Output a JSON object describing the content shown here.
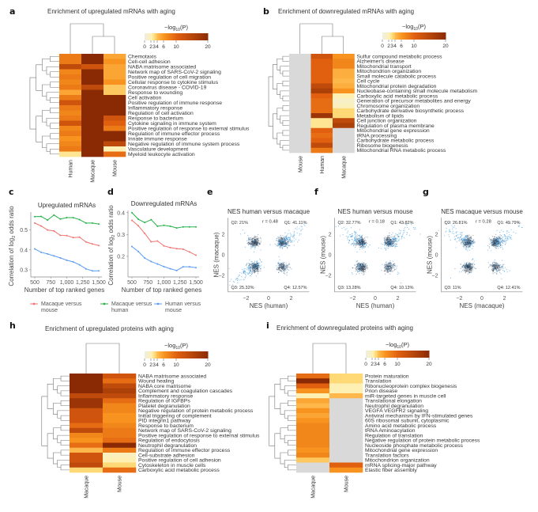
{
  "panel_labels": {
    "a": "a",
    "b": "b",
    "c": "c",
    "d": "d",
    "e": "e",
    "f": "f",
    "g": "g",
    "h": "h",
    "i": "i"
  },
  "colors": {
    "missing": "#d9d9d9",
    "red": "#f0736f",
    "green": "#27b24a",
    "blue": "#5b9cf0",
    "scatter_dark": "#2b3a4a",
    "scatter_blue": "#3d9be0"
  },
  "colorbar": {
    "title": "−log10(P)",
    "title_main": "−log",
    "title_sub": "10",
    "title_tail": "(P)",
    "ticks": [
      0,
      2,
      3,
      4,
      6,
      10,
      20
    ],
    "tick_labels": [
      "0",
      "2",
      "3",
      "4",
      "6",
      "10",
      "20"
    ],
    "range": [
      0,
      20
    ]
  },
  "chart_data": [
    {
      "id": "a",
      "type": "heatmap",
      "title": "Enrichment of upregulated mRNAs with aging",
      "columns": [
        "Human",
        "Macaque",
        "Mouse"
      ],
      "rows": [
        "Chemotaxis",
        "Cell-cell adhesion",
        "NABA matrisome associated",
        "Network map of SARS-CoV-2 signaling",
        "Positive regulation of cell migration",
        "Cellular response to cytokine stimulus",
        "Coronavirus disease - COVID-19",
        "Response to wounding",
        "Cell activation",
        "Positive regulation of immune response",
        "Inflammatory response",
        "Regulation of cell activation",
        "Response to bacterium",
        "Cytokine signaling in immune system",
        "Positive regulation of response to external stimulus",
        "Regulation of immune effector process",
        "Innate immune response",
        "Negative regulation of immune system process",
        "Vasculature development",
        "Myeloid leukocyte activation"
      ],
      "values": [
        [
          8,
          20,
          5
        ],
        [
          8,
          20,
          6
        ],
        [
          14,
          12,
          5
        ],
        [
          7,
          20,
          5
        ],
        [
          8,
          20,
          5
        ],
        [
          7,
          20,
          6
        ],
        [
          8,
          14,
          3.5
        ],
        [
          5,
          20,
          3.5
        ],
        [
          8,
          20,
          20
        ],
        [
          12,
          20,
          20
        ],
        [
          8,
          20,
          20
        ],
        [
          7,
          20,
          20
        ],
        [
          8,
          20,
          12
        ],
        [
          12,
          20,
          10
        ],
        [
          7,
          20,
          8
        ],
        [
          8,
          20,
          20
        ],
        [
          6,
          20,
          20
        ],
        [
          7,
          20,
          14
        ],
        [
          8,
          20,
          2
        ],
        [
          2.5,
          20,
          9
        ]
      ]
    },
    {
      "id": "b",
      "type": "heatmap",
      "title": "Enrichment of downregulated mRNAs with aging",
      "columns": [
        "Mouse",
        "Human",
        "Macaque"
      ],
      "rows": [
        "Sulfur compound metabolic process",
        "Alzheimer's disease",
        "Mitochondrial transport",
        "Mitochondrion organization",
        "Small molecule catabolic process",
        "Cell cycle",
        "Mitochondrial protein degradation",
        "Nucleobase-containing small molecule metabolism",
        "Carboxylic acid metabolic process",
        "Generation of precursor metabolites and energy",
        "Chromosome organization",
        "Carbohydrate derivative biosynthetic process",
        "Metabolism of lipids",
        "Cell junction organization",
        "Regulation of plasma membrane",
        "Mitochondrial gene expression",
        "tRNA processing",
        "Carbohydrate metabolic process",
        "Ribosome biogenesis",
        "Mitochondrial RNA metabolic process"
      ],
      "values": [
        [
          null,
          12,
          6
        ],
        [
          null,
          10,
          7
        ],
        [
          null,
          10,
          7
        ],
        [
          null,
          10,
          4.5
        ],
        [
          null,
          10,
          4.5
        ],
        [
          null,
          10,
          4
        ],
        [
          null,
          14,
          4.5
        ],
        [
          null,
          16,
          6
        ],
        [
          null,
          10,
          2
        ],
        [
          null,
          9,
          1
        ],
        [
          null,
          9,
          1.5
        ],
        [
          null,
          9,
          3
        ],
        [
          null,
          18,
          3
        ],
        [
          null,
          2.5,
          14
        ],
        [
          null,
          2.5,
          16
        ],
        [
          null,
          10,
          null
        ],
        [
          null,
          9,
          null
        ],
        [
          null,
          10,
          null
        ],
        [
          null,
          14,
          null
        ],
        [
          null,
          8,
          null
        ]
      ]
    },
    {
      "id": "c",
      "type": "line",
      "title": "Upregulated mRNAs",
      "xlabel": "Number of top ranked genes",
      "ylabel": "Correlation of log2 odds ratio",
      "x": [
        500,
        600,
        700,
        800,
        900,
        1000,
        1100,
        1200,
        1300,
        1400,
        1500
      ],
      "xticks": [
        500,
        750,
        1000,
        1250,
        1500
      ],
      "xtick_labels": [
        "500",
        "750",
        "1,000",
        "1,250",
        "1,500"
      ],
      "yticks": [
        0.3,
        0.4,
        0.5
      ],
      "ytick_labels": [
        "0.3",
        "0.4",
        "0.5"
      ],
      "ylim": [
        0.28,
        0.59
      ],
      "series": [
        {
          "name": "Macaque versus mouse",
          "color": "#f0736f",
          "values": [
            0.535,
            0.52,
            0.5,
            0.495,
            0.473,
            0.472,
            0.462,
            0.464,
            0.44,
            0.43,
            0.422
          ]
        },
        {
          "name": "Macaque versus human",
          "color": "#27b24a",
          "values": [
            0.567,
            0.568,
            0.55,
            0.575,
            0.555,
            0.562,
            0.562,
            0.552,
            0.535,
            0.535,
            0.53
          ]
        },
        {
          "name": "Human versus mouse",
          "color": "#5b9cf0",
          "values": [
            0.405,
            0.388,
            0.38,
            0.37,
            0.36,
            0.348,
            0.34,
            0.325,
            0.305,
            0.295,
            0.295
          ]
        }
      ]
    },
    {
      "id": "d",
      "type": "line",
      "title": "Downregulated mRNAs",
      "xlabel": "Number of top ranked genes",
      "ylabel": "Correlation of log2 odds ratio",
      "x": [
        500,
        600,
        700,
        800,
        900,
        1000,
        1100,
        1200,
        1300,
        1400,
        1500
      ],
      "xticks": [
        500,
        750,
        1000,
        1250,
        1500
      ],
      "xtick_labels": [
        "500",
        "750",
        "1,000",
        "1,250",
        "1,500"
      ],
      "yticks": [
        0.2,
        0.3,
        0.4
      ],
      "ytick_labels": [
        "0.2",
        "0.3",
        "0.4"
      ],
      "ylim": [
        0.12,
        0.41
      ],
      "series": [
        {
          "name": "Macaque versus mouse",
          "color": "#f0736f",
          "values": [
            0.365,
            0.34,
            0.305,
            0.267,
            0.27,
            0.248,
            0.24,
            0.235,
            0.233,
            0.22,
            0.205
          ]
        },
        {
          "name": "Macaque versus human",
          "color": "#27b24a",
          "values": [
            0.4,
            0.37,
            0.355,
            0.368,
            0.338,
            0.342,
            0.338,
            0.33,
            0.335,
            0.335,
            0.335
          ]
        },
        {
          "name": "Human versus mouse",
          "color": "#5b9cf0",
          "values": [
            0.245,
            0.222,
            0.192,
            0.176,
            0.165,
            0.153,
            0.143,
            0.135,
            0.152,
            0.152,
            0.148
          ]
        }
      ]
    },
    {
      "id": "e",
      "type": "scatter",
      "title": "NES human versus macaque",
      "xlabel": "NES (human)",
      "ylabel": "NES (macaque)",
      "r": "r = 0.48",
      "quadrants": {
        "Q1": "Q1: 41.11%",
        "Q2": "Q2: 21%",
        "Q3": "Q3: 25.32%",
        "Q4": "Q4: 12.57%"
      },
      "ticks": [
        -2,
        0,
        2
      ],
      "tick_labels": [
        "−2",
        "0",
        "2"
      ],
      "xlim": [
        -3.6,
        3.6
      ],
      "ylim": [
        -3.6,
        3.6
      ],
      "blue_quadrants": [
        "Q1",
        "Q3"
      ]
    },
    {
      "id": "f",
      "type": "scatter",
      "title": "NES human versus mouse",
      "xlabel": "NES (human)",
      "ylabel": "NES (mouse)",
      "r": "r = 0.18",
      "quadrants": {
        "Q1": "Q1: 43.82%",
        "Q2": "Q2: 32.77%",
        "Q3": "Q3: 13.28%",
        "Q4": "Q4: 10.13%"
      },
      "ticks": [
        -2,
        0,
        2
      ],
      "tick_labels": [
        "−2",
        "0",
        "2"
      ],
      "xlim": [
        -3.6,
        3.6
      ],
      "ylim": [
        -3.6,
        3.6
      ],
      "blue_quadrants": [
        "Q1",
        "Q2"
      ]
    },
    {
      "id": "g",
      "type": "scatter",
      "title": "NES macaque versus mouse",
      "xlabel": "NES (macaque)",
      "ylabel": "NES (mouse)",
      "r": "r = 0.28",
      "quadrants": {
        "Q1": "Q1: 49.79%",
        "Q2": "Q2: 26.81%",
        "Q3": "Q3: 11%",
        "Q4": "Q4: 12.41%"
      },
      "ticks": [
        -2,
        0,
        2
      ],
      "tick_labels": [
        "−2",
        "0",
        "2"
      ],
      "xlim": [
        -3.6,
        3.6
      ],
      "ylim": [
        -3.6,
        3.6
      ],
      "blue_quadrants": [
        "Q1",
        "Q2"
      ]
    },
    {
      "id": "h",
      "type": "heatmap",
      "title": "Enrichment of upregulated proteins with aging",
      "columns": [
        "Macaque",
        "Mouse"
      ],
      "rows": [
        "NABA matrisome associated",
        "Wound healing",
        "NABA core matrisome",
        "Complement and coagulation cascades",
        "Inflammatory response",
        "Regulation of IGFBPs",
        "Platelet degranulation",
        "Negative regulation of protein metabolic process",
        "Initial triggering of complement",
        "PID integrin1 pathway",
        "Response to bacterium",
        "Network map of SARS-CoV-2 signaling",
        "Positive regulation of response to external stimulus",
        "Regulation of endocytosis",
        "Neutrophil degranulation",
        "Regulation of immune effector process",
        "Cell-substrate adhesion",
        "Positive regulation of cell adhesion",
        "Cytoskeleton in muscle cells",
        "Carboxylic acid metabolic process"
      ],
      "values": [
        [
          20,
          12
        ],
        [
          20,
          9
        ],
        [
          20,
          14
        ],
        [
          20,
          16
        ],
        [
          14,
          14
        ],
        [
          18,
          9
        ],
        [
          18,
          7
        ],
        [
          12,
          7
        ],
        [
          12,
          6
        ],
        [
          12,
          6
        ],
        [
          9,
          7
        ],
        [
          14,
          8
        ],
        [
          7,
          8
        ],
        [
          6,
          9
        ],
        [
          9,
          20
        ],
        [
          4,
          8
        ],
        [
          12,
          1.5
        ],
        [
          12,
          2
        ],
        [
          14,
          3
        ],
        [
          3,
          9
        ]
      ]
    },
    {
      "id": "i",
      "type": "heatmap",
      "title": "Enrichment of downregulated proteins with aging",
      "columns": [
        "Macaque",
        "Mouse"
      ],
      "rows": [
        "Protein maturation",
        "Translation",
        "Ribonucleoprotein complex biogenesis",
        "Prion disease",
        "miR-targeted genes in muscle cell",
        "Translational elongation",
        "Neutrophil degranulation",
        "VEGFA VEGFR2 signaling",
        "Antiviral mechanism by IFN-stimulated genes",
        "60S ribosomal subunit, cytoplasmic",
        "Amino acid metabolic process",
        "tRNA Aminoacylation",
        "Regulation of translation",
        "Negative regulation of protein metabolic process",
        "Nucleoside phosphate metabolic process",
        "Mitochondrial gene expression",
        "Translation factors",
        "Mitochondrion organization",
        "mRNA splicing-major pathway",
        "Elastic fiber assembly"
      ],
      "values": [
        [
          9,
          3
        ],
        [
          20,
          3
        ],
        [
          10,
          2
        ],
        [
          6,
          2
        ],
        [
          2,
          4
        ],
        [
          5,
          null
        ],
        [
          4,
          null
        ],
        [
          6,
          null
        ],
        [
          5,
          null
        ],
        [
          6,
          null
        ],
        [
          7,
          null
        ],
        [
          7,
          null
        ],
        [
          7,
          null
        ],
        [
          7,
          null
        ],
        [
          7,
          null
        ],
        [
          6,
          null
        ],
        [
          7,
          null
        ],
        [
          3.5,
          null
        ],
        [
          null,
          10
        ],
        [
          null,
          6
        ]
      ]
    }
  ]
}
